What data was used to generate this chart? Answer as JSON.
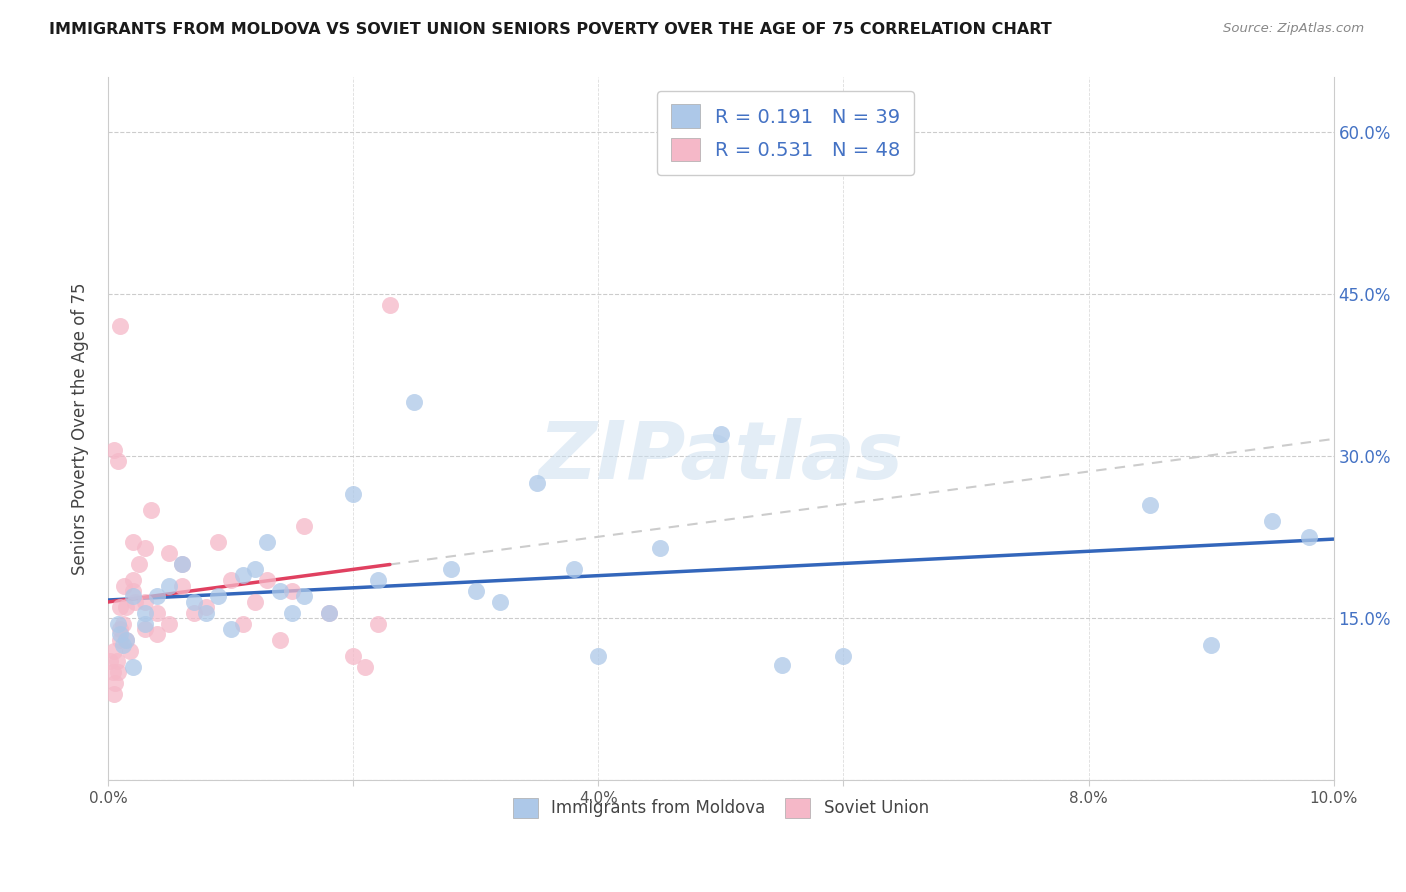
{
  "title": "IMMIGRANTS FROM MOLDOVA VS SOVIET UNION SENIORS POVERTY OVER THE AGE OF 75 CORRELATION CHART",
  "source": "Source: ZipAtlas.com",
  "ylabel_label": "Seniors Poverty Over the Age of 75",
  "legend_label1": "Immigrants from Moldova",
  "legend_label2": "Soviet Union",
  "R1": 0.191,
  "N1": 39,
  "R2": 0.531,
  "N2": 48,
  "xlim": [
    0.0,
    0.1
  ],
  "ylim": [
    0.0,
    0.65
  ],
  "x_ticks": [
    0.0,
    0.02,
    0.04,
    0.06,
    0.08,
    0.1
  ],
  "x_tick_labels": [
    "0.0%",
    "",
    "4.0%",
    "",
    "8.0%",
    "10.0%"
  ],
  "y_ticks": [
    0.0,
    0.15,
    0.3,
    0.45,
    0.6
  ],
  "y_tick_labels_right": [
    "",
    "15.0%",
    "30.0%",
    "45.0%",
    "60.0%"
  ],
  "color_moldova": "#adc8e8",
  "color_soviet": "#f5b8c8",
  "color_line_moldova": "#3366bb",
  "color_line_soviet": "#e04060",
  "color_legend_text": "#4472c4",
  "watermark": "ZIPatlas",
  "moldova_x": [
    0.0008,
    0.001,
    0.0012,
    0.0015,
    0.002,
    0.002,
    0.003,
    0.003,
    0.004,
    0.005,
    0.006,
    0.007,
    0.008,
    0.009,
    0.01,
    0.011,
    0.012,
    0.013,
    0.014,
    0.015,
    0.016,
    0.018,
    0.02,
    0.022,
    0.025,
    0.028,
    0.03,
    0.032,
    0.035,
    0.038,
    0.04,
    0.045,
    0.05,
    0.055,
    0.06,
    0.085,
    0.09,
    0.095,
    0.098
  ],
  "moldova_y": [
    0.145,
    0.135,
    0.125,
    0.13,
    0.105,
    0.17,
    0.155,
    0.145,
    0.17,
    0.18,
    0.2,
    0.165,
    0.155,
    0.17,
    0.14,
    0.19,
    0.195,
    0.22,
    0.175,
    0.155,
    0.17,
    0.155,
    0.265,
    0.185,
    0.35,
    0.195,
    0.175,
    0.165,
    0.275,
    0.195,
    0.115,
    0.215,
    0.32,
    0.107,
    0.115,
    0.255,
    0.125,
    0.24,
    0.225
  ],
  "soviet_x": [
    0.0002,
    0.0004,
    0.0005,
    0.0005,
    0.0006,
    0.0007,
    0.0008,
    0.001,
    0.001,
    0.001,
    0.0012,
    0.0013,
    0.0015,
    0.0015,
    0.0018,
    0.002,
    0.002,
    0.002,
    0.0022,
    0.0025,
    0.003,
    0.003,
    0.003,
    0.0035,
    0.004,
    0.004,
    0.005,
    0.005,
    0.006,
    0.006,
    0.007,
    0.008,
    0.009,
    0.01,
    0.011,
    0.012,
    0.013,
    0.014,
    0.015,
    0.016,
    0.018,
    0.02,
    0.021,
    0.022,
    0.023,
    0.0005,
    0.0008,
    0.001
  ],
  "soviet_y": [
    0.11,
    0.1,
    0.12,
    0.08,
    0.09,
    0.11,
    0.1,
    0.14,
    0.16,
    0.13,
    0.145,
    0.18,
    0.16,
    0.13,
    0.12,
    0.185,
    0.22,
    0.175,
    0.165,
    0.2,
    0.14,
    0.165,
    0.215,
    0.25,
    0.155,
    0.135,
    0.145,
    0.21,
    0.18,
    0.2,
    0.155,
    0.16,
    0.22,
    0.185,
    0.145,
    0.165,
    0.185,
    0.13,
    0.175,
    0.235,
    0.155,
    0.115,
    0.105,
    0.145,
    0.44,
    0.305,
    0.295,
    0.42
  ]
}
